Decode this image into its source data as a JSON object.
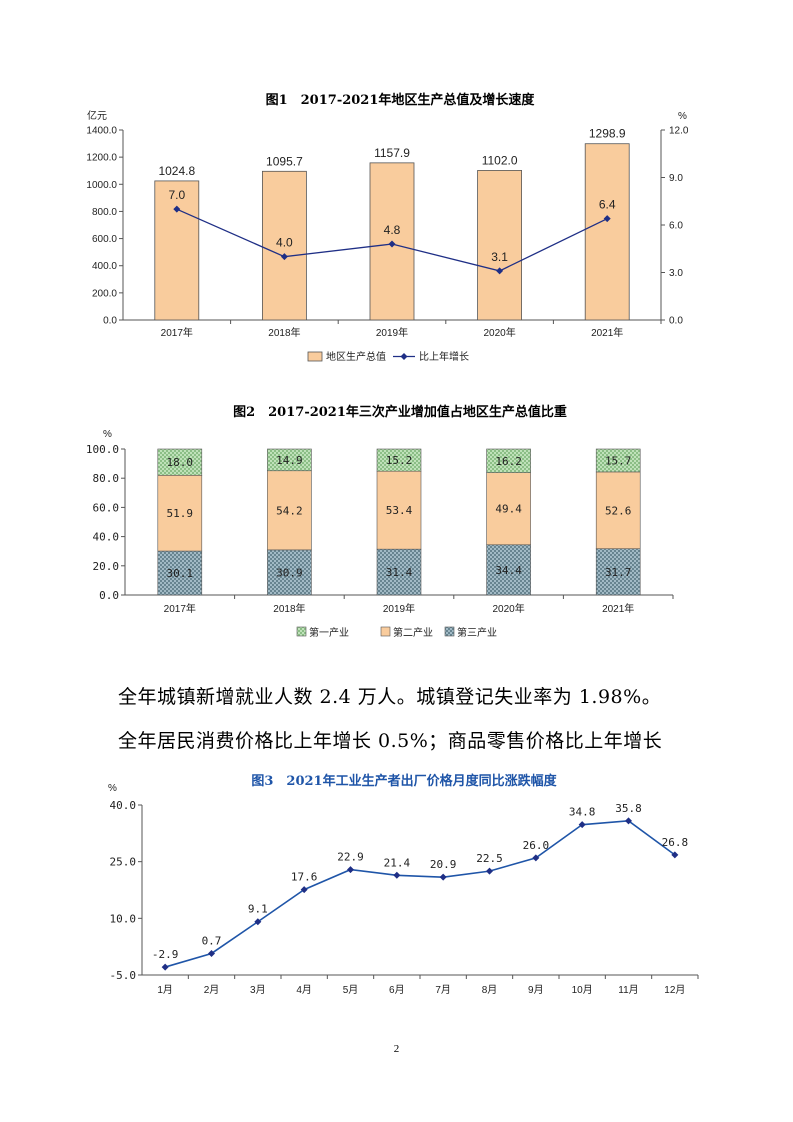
{
  "figure1": {
    "title": "图1　2017-2021年地区生产总值及增长速度",
    "left_unit": "亿元",
    "right_unit": "%",
    "left_ticks": [
      "0.0",
      "200.0",
      "400.0",
      "600.0",
      "800.0",
      "1000.0",
      "1200.0",
      "1400.0"
    ],
    "right_ticks": [
      "0.0",
      "3.0",
      "6.0",
      "9.0",
      "12.0"
    ],
    "legend": [
      "地区生产总值",
      "比上年增长"
    ],
    "bar_color": "#f9cc9d",
    "line_color": "#1f2f86"
  },
  "figure2": {
    "title": "图2　2017-2021年三次产业增加值占地区生产总值比重",
    "unit": "%",
    "ticks": [
      "0.0",
      "20.0",
      "40.0",
      "60.0",
      "80.0",
      "100.0"
    ],
    "legend": [
      "第一产业",
      "第二产业",
      "第三产业"
    ],
    "colors": {
      "primary": "#c6e6c0",
      "secondary": "#f9cc9d",
      "tertiary": "#a9c1cc"
    }
  },
  "paragraph": {
    "line1": "全年城镇新增就业人数 2.4 万人。城镇登记失业率为 1.98%。",
    "line2": "全年居民消费价格比上年增长 0.5%；商品零售价格比上年增长"
  },
  "figure3": {
    "title": "图3　2021年工业生产者出厂价格月度同比涨跌幅度",
    "unit": "%",
    "ticks": [
      "-5.0",
      "10.0",
      "25.0",
      "40.0"
    ],
    "line_color": "#1f55a8"
  },
  "page_number": "2",
  "chart_data": [
    {
      "type": "bar",
      "title": "图1　2017-2021年地区生产总值及增长速度",
      "categories": [
        "2017年",
        "2018年",
        "2019年",
        "2020年",
        "2021年"
      ],
      "series": [
        {
          "name": "地区生产总值",
          "type": "bar",
          "axis": "left",
          "values": [
            1024.8,
            1095.7,
            1157.9,
            1102.0,
            1298.9
          ],
          "labels": [
            "1024.8",
            "1095.7",
            "1157.9",
            "1102.0",
            "1298.9"
          ]
        },
        {
          "name": "比上年增长",
          "type": "line",
          "axis": "right",
          "values": [
            7.0,
            4.0,
            4.8,
            3.1,
            6.4
          ],
          "labels": [
            "7.0",
            "4.0",
            "4.8",
            "3.1",
            "6.4"
          ]
        }
      ],
      "ylabel": "亿元",
      "ylim": [
        0,
        1400
      ],
      "y2label": "%",
      "y2lim": [
        0,
        12
      ],
      "legend_position": "bottom",
      "grid": false
    },
    {
      "type": "bar",
      "stacked": true,
      "title": "图2　2017-2021年三次产业增加值占地区生产总值比重",
      "categories": [
        "2017年",
        "2018年",
        "2019年",
        "2020年",
        "2021年"
      ],
      "series": [
        {
          "name": "第三产业",
          "values": [
            30.1,
            30.9,
            31.4,
            34.4,
            31.7
          ],
          "labels": [
            "30.1",
            "30.9",
            "31.4",
            "34.4",
            "31.7"
          ]
        },
        {
          "name": "第二产业",
          "values": [
            51.9,
            54.2,
            53.4,
            49.4,
            52.6
          ],
          "labels": [
            "51.9",
            "54.2",
            "53.4",
            "49.4",
            "52.6"
          ]
        },
        {
          "name": "第一产业",
          "values": [
            18.0,
            14.9,
            15.2,
            16.2,
            15.7
          ],
          "labels": [
            "18.0",
            "14.9",
            "15.2",
            "16.2",
            "15.7"
          ]
        }
      ],
      "ylabel": "%",
      "ylim": [
        0,
        100
      ],
      "legend_position": "bottom",
      "grid": false
    },
    {
      "type": "line",
      "title": "图3　2021年工业生产者出厂价格月度同比涨跌幅度",
      "categories": [
        "1月",
        "2月",
        "3月",
        "4月",
        "5月",
        "6月",
        "7月",
        "8月",
        "9月",
        "10月",
        "11月",
        "12月"
      ],
      "series": [
        {
          "values": [
            -2.9,
            0.7,
            9.1,
            17.6,
            22.9,
            21.4,
            20.9,
            22.5,
            26.0,
            34.8,
            35.8,
            26.8
          ],
          "labels": [
            "-2.9",
            "0.7",
            "9.1",
            "17.6",
            "22.9",
            "21.4",
            "20.9",
            "22.5",
            "26.0",
            "34.8",
            "35.8",
            "26.8"
          ]
        }
      ],
      "ylabel": "%",
      "ylim": [
        -5,
        40
      ],
      "legend_position": "none",
      "grid": false
    }
  ]
}
